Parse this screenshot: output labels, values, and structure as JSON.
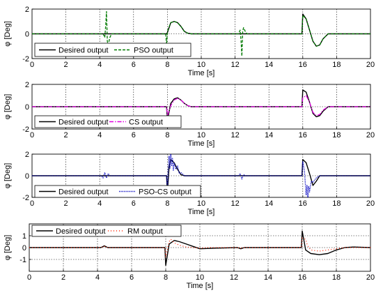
{
  "colors": {
    "desired": "#000000",
    "pso": "#007a00",
    "cs": "#e000e0",
    "psocs": "#0000c0",
    "rm": "#ff2000",
    "grid": "#000000"
  },
  "chart_data": [
    {
      "type": "line",
      "xlabel": "Time [s]",
      "ylabel": "φ [Deg]",
      "xlim": [
        0,
        20
      ],
      "ylim": [
        -2,
        2
      ],
      "xticks": [
        "0",
        "2",
        "4",
        "6",
        "8",
        "10",
        "12",
        "14",
        "16",
        "18",
        "20"
      ],
      "yticks": [
        "-2",
        "0",
        "2"
      ],
      "grid": true,
      "legend": "bottom-left",
      "series": [
        {
          "name": "Desired output",
          "style": "solid",
          "x": [
            0,
            7.95,
            8.0,
            8.2,
            8.4,
            8.6,
            8.8,
            9.0,
            9.2,
            9.4,
            9.6,
            10.0,
            15.95,
            16.0,
            16.2,
            16.4,
            16.6,
            16.8,
            17.0,
            17.2,
            17.5,
            20
          ],
          "y": [
            0,
            0,
            0.1,
            0.9,
            1.0,
            0.9,
            0.6,
            0.2,
            0.05,
            0,
            0,
            0,
            0,
            1.6,
            1.2,
            0.3,
            -0.6,
            -1.0,
            -0.9,
            -0.4,
            0,
            0
          ]
        },
        {
          "name": "PSO output",
          "style": "dashed",
          "x": [
            0,
            4.2,
            4.3,
            4.35,
            4.4,
            4.45,
            4.5,
            4.6,
            4.7,
            4.9,
            7.9,
            7.95,
            8.0,
            8.05,
            8.2,
            8.4,
            8.6,
            8.8,
            9.0,
            9.2,
            9.4,
            9.6,
            10.0,
            12.2,
            12.3,
            12.35,
            12.4,
            12.45,
            12.5,
            12.6,
            12.7,
            12.9,
            15.95,
            16.0,
            16.2,
            16.4,
            16.6,
            16.8,
            17.0,
            17.2,
            17.5,
            20
          ],
          "y": [
            0,
            0,
            -0.3,
            0.6,
            1.8,
            -0.6,
            -0.9,
            -0.3,
            0,
            0,
            0,
            -0.9,
            0.1,
            0.4,
            0.9,
            1.0,
            0.9,
            0.6,
            0.2,
            0.05,
            0,
            0,
            0,
            0,
            0.3,
            -0.5,
            -1.8,
            0.2,
            0.5,
            0.2,
            0,
            0,
            0,
            1.5,
            1.2,
            0.3,
            -0.6,
            -1.0,
            -0.9,
            -0.4,
            0,
            0
          ]
        }
      ]
    },
    {
      "type": "line",
      "xlabel": "Time [s]",
      "ylabel": "φ [Deg]",
      "xlim": [
        0,
        20
      ],
      "ylim": [
        -2,
        2
      ],
      "xticks": [
        "0",
        "2",
        "4",
        "6",
        "8",
        "10",
        "12",
        "14",
        "16",
        "18",
        "20"
      ],
      "yticks": [
        "-2",
        "0",
        "2"
      ],
      "grid": true,
      "legend": "bottom-left",
      "series": [
        {
          "name": "Desired output",
          "style": "solid",
          "x": [
            0,
            7.95,
            8.0,
            8.2,
            8.4,
            8.6,
            8.8,
            9.0,
            9.2,
            9.4,
            9.6,
            10.0,
            15.95,
            16.0,
            16.2,
            16.4,
            16.6,
            16.8,
            17.0,
            17.2,
            17.5,
            20
          ],
          "y": [
            0,
            0,
            -1.2,
            0.3,
            0.7,
            0.8,
            0.6,
            0.3,
            0.1,
            0,
            0,
            0,
            0,
            1.5,
            1.3,
            0.4,
            -0.6,
            -0.9,
            -0.8,
            -0.4,
            0,
            0
          ]
        },
        {
          "name": "CS output",
          "style": "dashdot",
          "x": [
            0,
            7.95,
            8.0,
            8.2,
            8.4,
            8.6,
            8.8,
            9.0,
            9.2,
            9.4,
            9.6,
            10.0,
            15.95,
            16.0,
            16.2,
            16.4,
            16.6,
            16.8,
            17.0,
            17.2,
            17.5,
            20
          ],
          "y": [
            0,
            0,
            -0.8,
            0.1,
            0.6,
            0.75,
            0.6,
            0.3,
            0.1,
            0,
            0,
            0,
            0,
            0.8,
            1.0,
            0.4,
            -0.5,
            -0.8,
            -0.7,
            -0.3,
            0,
            0
          ]
        }
      ]
    },
    {
      "type": "line",
      "xlabel": "Time [s]",
      "ylabel": "φ [Deg]",
      "xlim": [
        0,
        20
      ],
      "ylim": [
        -2,
        2
      ],
      "xticks": [
        "0",
        "2",
        "4",
        "6",
        "8",
        "10",
        "12",
        "14",
        "16",
        "18",
        "20"
      ],
      "yticks": [
        "-2",
        "0",
        "2"
      ],
      "grid": true,
      "legend": "bottom-left",
      "series": [
        {
          "name": "Desired output",
          "style": "solid",
          "x": [
            0,
            7.95,
            8.0,
            8.1,
            8.2,
            8.4,
            8.6,
            8.8,
            9.0,
            9.2,
            9.6,
            15.95,
            16.0,
            16.2,
            16.4,
            16.6,
            16.8,
            17.0,
            20
          ],
          "y": [
            0,
            0,
            -1.5,
            0.8,
            1.5,
            1.2,
            0.6,
            0.1,
            0,
            0,
            0,
            0,
            1.5,
            1.2,
            0.2,
            -0.9,
            -0.5,
            0,
            0
          ]
        },
        {
          "name": "PSO-CS output",
          "style": "dotted",
          "x": [
            0,
            4.1,
            4.2,
            4.3,
            4.4,
            4.5,
            4.6,
            7.95,
            8.0,
            8.05,
            8.1,
            8.15,
            8.2,
            8.25,
            8.3,
            8.35,
            8.4,
            8.5,
            8.6,
            8.7,
            8.8,
            9.0,
            9.2,
            12.2,
            12.3,
            12.4,
            12.5,
            12.6,
            15.95,
            16.0,
            16.1,
            16.2,
            16.25,
            16.3,
            16.35,
            16.4,
            16.5,
            16.6,
            16.8,
            17.0,
            20
          ],
          "y": [
            0,
            0,
            -0.2,
            0.3,
            -0.2,
            0.2,
            0,
            0,
            -1.4,
            0.6,
            1.8,
            0.7,
            2.0,
            0.9,
            1.6,
            0.5,
            1.2,
            0.6,
            0.9,
            0.2,
            0.3,
            0,
            0,
            0,
            0.2,
            -0.3,
            0.1,
            0,
            0,
            1.3,
            0.4,
            -1.8,
            -0.9,
            -2.0,
            -1.0,
            -1.5,
            -0.5,
            -0.6,
            -0.2,
            0,
            0
          ]
        }
      ]
    },
    {
      "type": "line",
      "xlabel": "Time [s]",
      "ylabel": "φ [Deg]",
      "xlim": [
        0,
        20
      ],
      "ylim": [
        -2,
        2
      ],
      "xticks": [
        "0",
        "2",
        "4",
        "6",
        "8",
        "10",
        "12",
        "14",
        "16",
        "18",
        "20"
      ],
      "yticks": [
        "-1",
        "0",
        "1"
      ],
      "grid": true,
      "legend": "top-left",
      "series": [
        {
          "name": "Desired output",
          "style": "solid",
          "x": [
            0,
            4.2,
            4.4,
            4.6,
            4.8,
            7.95,
            8.0,
            8.2,
            8.5,
            8.8,
            9.2,
            9.6,
            10.0,
            11.0,
            12.2,
            12.4,
            12.6,
            15.95,
            16.0,
            16.2,
            16.5,
            17.0,
            17.5,
            18.0,
            18.5,
            19.0,
            20
          ],
          "y": [
            0,
            0,
            0.15,
            0.0,
            0,
            0,
            -1.5,
            0.3,
            0.6,
            0.5,
            0.3,
            0.1,
            -0.1,
            -0.05,
            0,
            -0.1,
            0,
            0,
            1.4,
            -0.2,
            -0.5,
            -0.6,
            -0.5,
            -0.2,
            0,
            0.05,
            0
          ]
        },
        {
          "name": "RM output",
          "style": "dots",
          "x": [
            0,
            4.2,
            4.4,
            4.6,
            7.95,
            8.0,
            8.2,
            8.3,
            8.5,
            8.8,
            9.2,
            9.6,
            10.0,
            10.5,
            12.2,
            12.4,
            12.6,
            15.95,
            16.0,
            16.2,
            16.3,
            16.5,
            17.0,
            17.5,
            18.0,
            18.5,
            20
          ],
          "y": [
            0,
            0,
            0.1,
            0,
            0,
            -0.8,
            0.5,
            0.7,
            0.4,
            0.2,
            0.05,
            0,
            -0.05,
            0,
            0,
            -0.05,
            0,
            0,
            0.8,
            0.7,
            0.2,
            -0.2,
            -0.3,
            -0.2,
            -0.1,
            0,
            0
          ]
        }
      ]
    }
  ]
}
